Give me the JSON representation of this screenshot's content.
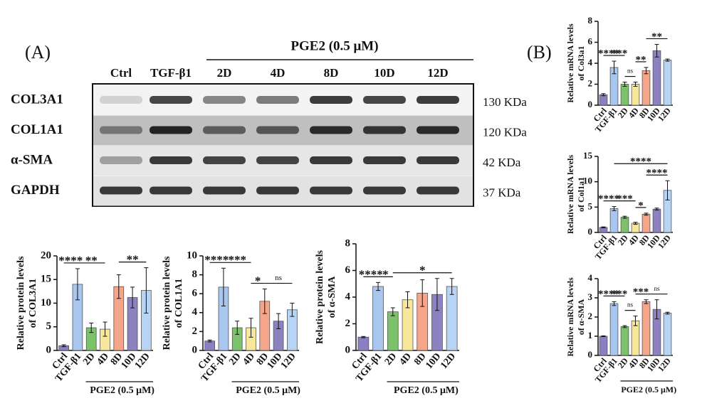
{
  "blot": {
    "panel_label": "(A)",
    "treatment": "PGE2 (0.5 μM)",
    "lanes": [
      "Ctrl",
      "TGF-β1",
      "2D",
      "4D",
      "8D",
      "10D",
      "12D"
    ],
    "rows": [
      {
        "name": "COL3A1",
        "size": "130 KDa"
      },
      {
        "name": "COL1A1",
        "size": "120 KDa"
      },
      {
        "name": "α-SMA",
        "size": "42 KDa"
      },
      {
        "name": "GAPDH",
        "size": "37 KDa"
      }
    ]
  },
  "panel_b_label": "(B)",
  "chart_data": [
    {
      "type": "bar",
      "ylabel": [
        "Relative protein levels",
        "of COL3A1"
      ],
      "group_label": "PGE2 (0.5 μM)",
      "categories": [
        "Ctrl",
        "TGF-β1",
        "2D",
        "4D",
        "8D",
        "10D",
        "12D"
      ],
      "values": [
        1,
        14,
        4.8,
        4.5,
        13.5,
        11.2,
        12.7
      ],
      "errors": [
        0.2,
        3.3,
        1,
        1.5,
        2.5,
        2.2,
        4.8
      ],
      "colors": [
        "#8b7fc4",
        "#a9c6ef",
        "#7cc26a",
        "#f7e79a",
        "#f4a58a",
        "#8c82c0",
        "#b8d4f5"
      ],
      "ylim": [
        0,
        20
      ],
      "yticks": [
        0,
        5,
        10,
        15,
        20
      ],
      "significance": [
        {
          "from": 0,
          "to": 1,
          "label": "****"
        },
        {
          "from": 1,
          "to": 3,
          "label": "**"
        },
        {
          "from": 4,
          "to": 6,
          "label": "**"
        }
      ]
    },
    {
      "type": "bar",
      "ylabel": [
        "Relative protein levels",
        "of COL1A1"
      ],
      "group_label": "PGE2 (0.5 μM)",
      "categories": [
        "Ctrl",
        "TGF-β1",
        "2D",
        "4D",
        "8D",
        "10D",
        "12D"
      ],
      "values": [
        1,
        6.7,
        2.4,
        2.4,
        5.2,
        3.1,
        4.3
      ],
      "errors": [
        0.1,
        2,
        0.7,
        1,
        1.3,
        0.8,
        0.7
      ],
      "colors": [
        "#8b7fc4",
        "#a9c6ef",
        "#7cc26a",
        "#f7e79a",
        "#f4a58a",
        "#8c82c0",
        "#b8d4f5"
      ],
      "ylim": [
        0,
        10
      ],
      "yticks": [
        0,
        2,
        4,
        6,
        8,
        10
      ],
      "significance": [
        {
          "from": 0,
          "to": 1,
          "label": "****"
        },
        {
          "from": 1,
          "to": 3,
          "label": "***"
        },
        {
          "from": 3,
          "to": 4,
          "label": "*"
        },
        {
          "from": 4,
          "to": 6,
          "label": "ns"
        }
      ]
    },
    {
      "type": "bar",
      "ylabel": [
        "Relative protein levels",
        "of α-SMA"
      ],
      "group_label": "PGE2 (0.5 μM)",
      "categories": [
        "Ctrl",
        "TGF-β1",
        "2D",
        "4D",
        "8D",
        "10D",
        "12D"
      ],
      "values": [
        1,
        4.8,
        2.9,
        3.8,
        4.3,
        4.2,
        4.8
      ],
      "errors": [
        0.05,
        0.3,
        0.3,
        0.6,
        1,
        1.2,
        0.6
      ],
      "colors": [
        "#8b7fc4",
        "#a9c6ef",
        "#7cc26a",
        "#f7e79a",
        "#f4a58a",
        "#8c82c0",
        "#b8d4f5"
      ],
      "ylim": [
        0,
        8
      ],
      "yticks": [
        0,
        2,
        4,
        6,
        8
      ],
      "significance": [
        {
          "from": 0,
          "to": 1,
          "label": "****"
        },
        {
          "from": 1,
          "to": 2,
          "label": "*"
        },
        {
          "from": 2,
          "to": 6,
          "label": "*"
        }
      ]
    },
    {
      "type": "bar",
      "ylabel": [
        "Relative mRNA levels",
        "of Col3a1"
      ],
      "categories": [
        "Ctrl",
        "TGF-β1",
        "2D",
        "4D",
        "8D",
        "10D",
        "12D"
      ],
      "values": [
        1,
        3.6,
        2,
        2,
        3.3,
        5.2,
        4.3
      ],
      "errors": [
        0.1,
        0.6,
        0.2,
        0.2,
        0.3,
        0.6,
        0.1
      ],
      "colors": [
        "#8b7fc4",
        "#a9c6ef",
        "#7cc26a",
        "#f7e79a",
        "#f4a58a",
        "#8c82c0",
        "#b8d4f5"
      ],
      "ylim": [
        0,
        8
      ],
      "yticks": [
        0,
        2,
        4,
        6,
        8
      ],
      "significance": [
        {
          "from": 0,
          "to": 1,
          "label": "****"
        },
        {
          "from": 1,
          "to": 2,
          "label": "***"
        },
        {
          "from": 2,
          "to": 3,
          "label": "ns"
        },
        {
          "from": 3,
          "to": 4,
          "label": "**"
        },
        {
          "from": 4,
          "to": 6,
          "label": "**"
        }
      ]
    },
    {
      "type": "bar",
      "ylabel": [
        "Relative mRNA levels",
        "of Col1a1"
      ],
      "categories": [
        "Ctrl",
        "TGF-β1",
        "2D",
        "4D",
        "8D",
        "10D",
        "12D"
      ],
      "values": [
        1,
        4.7,
        3,
        1.8,
        3.6,
        4.6,
        8.3
      ],
      "errors": [
        0.1,
        0.4,
        0.2,
        0.2,
        0.2,
        0.2,
        1.9
      ],
      "colors": [
        "#8b7fc4",
        "#a9c6ef",
        "#7cc26a",
        "#f7e79a",
        "#f4a58a",
        "#8c82c0",
        "#b8d4f5"
      ],
      "ylim": [
        0,
        15
      ],
      "yticks": [
        0,
        5,
        10,
        15
      ],
      "significance": [
        {
          "from": 0,
          "to": 1,
          "label": "****"
        },
        {
          "from": 3,
          "to": 4,
          "label": "*"
        },
        {
          "from": 1,
          "to": 3,
          "label": "***"
        },
        {
          "from": 4,
          "to": 6,
          "label": "****"
        },
        {
          "from": 1,
          "to": 6,
          "label": "****"
        }
      ]
    },
    {
      "type": "bar",
      "ylabel": [
        "Relative mRNA levels",
        "of α-SMA"
      ],
      "group_label": "PGE2 (0.5 μM)",
      "categories": [
        "Ctrl",
        "TGF-β1",
        "2D",
        "4D",
        "8D",
        "10D",
        "12D"
      ],
      "values": [
        1,
        2.7,
        1.5,
        1.8,
        2.8,
        2.4,
        2.2
      ],
      "errors": [
        0.02,
        0.1,
        0.05,
        0.25,
        0.1,
        0.5,
        0.05
      ],
      "colors": [
        "#8b7fc4",
        "#a9c6ef",
        "#7cc26a",
        "#f7e79a",
        "#f4a58a",
        "#8c82c0",
        "#b8d4f5"
      ],
      "ylim": [
        0,
        4
      ],
      "yticks": [
        0,
        1,
        2,
        3,
        4
      ],
      "significance": [
        {
          "from": 0,
          "to": 1,
          "label": "****"
        },
        {
          "from": 1,
          "to": 2,
          "label": "***"
        },
        {
          "from": 2,
          "to": 3,
          "label": "ns"
        },
        {
          "from": 3,
          "to": 4,
          "label": "***"
        },
        {
          "from": 4,
          "to": 6,
          "label": "ns"
        }
      ]
    }
  ]
}
